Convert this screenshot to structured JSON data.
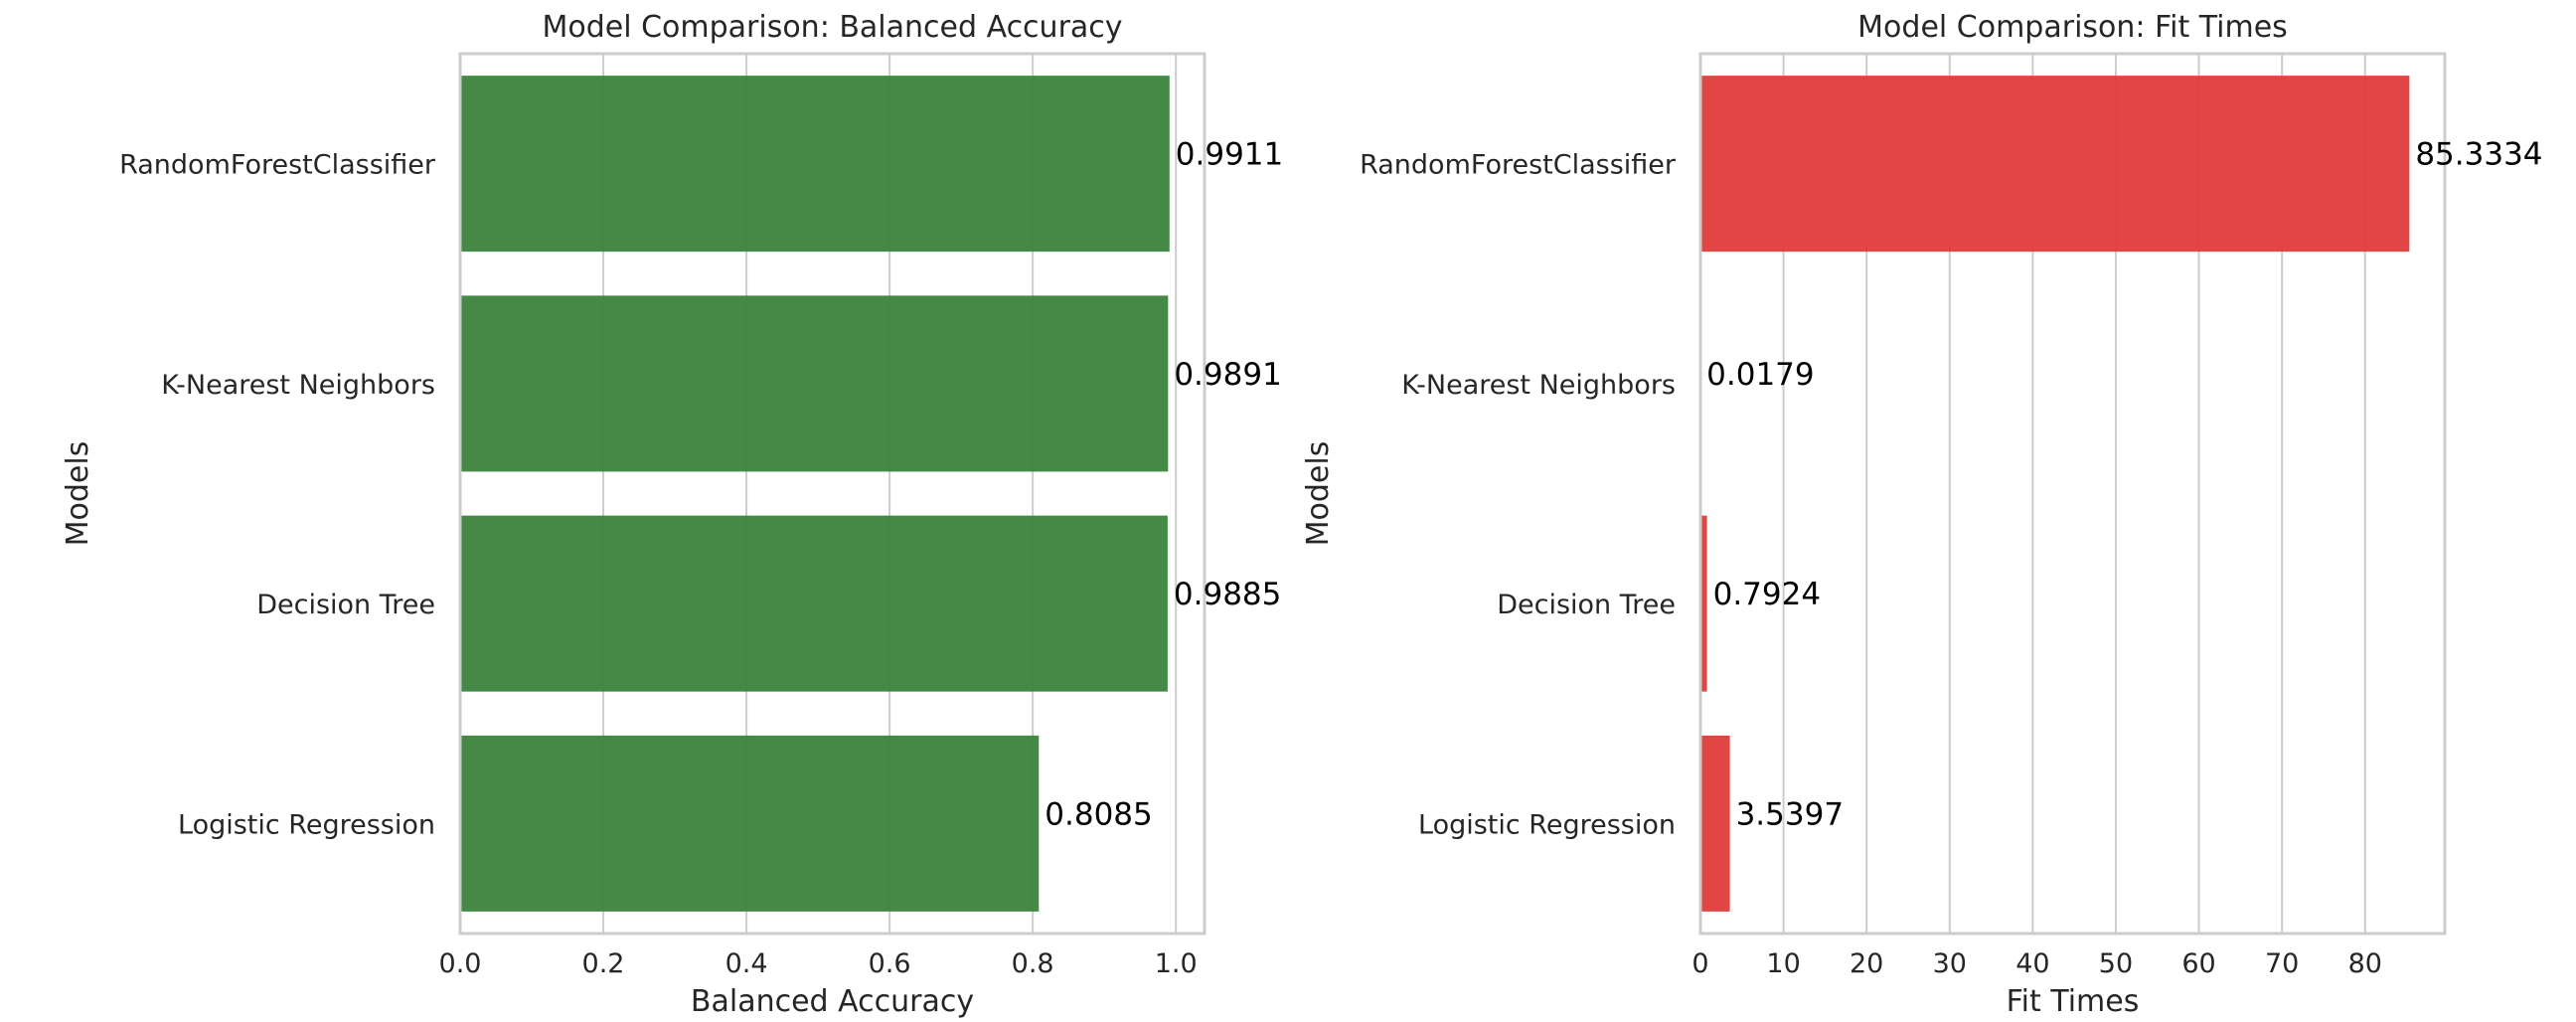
{
  "colors": {
    "accuracy_bar": "#3a833c",
    "fit_time_bar": "#e03c3a",
    "grid": "#cccccc",
    "text": "#262626"
  },
  "chart_data": [
    {
      "type": "bar",
      "orientation": "horizontal",
      "title": "Model Comparison: Balanced Accuracy",
      "xlabel": "Balanced Accuracy",
      "ylabel": "Models",
      "categories": [
        "RandomForestClassifier",
        "K-Nearest Neighbors",
        "Decision Tree",
        "Logistic Regression"
      ],
      "values": [
        0.9911,
        0.9891,
        0.9885,
        0.8085
      ],
      "data_labels": [
        "0.9911",
        "0.9891",
        "0.9885",
        "0.8085"
      ],
      "xlim": [
        0,
        1.04
      ],
      "xticks": [
        0.0,
        0.2,
        0.4,
        0.6,
        0.8,
        1.0
      ],
      "xtick_labels": [
        "0.0",
        "0.2",
        "0.4",
        "0.6",
        "0.8",
        "1.0"
      ],
      "grid": true,
      "color": "#3a833c"
    },
    {
      "type": "bar",
      "orientation": "horizontal",
      "title": "Model Comparison: Fit Times",
      "xlabel": "Fit Times",
      "ylabel": "Models",
      "categories": [
        "RandomForestClassifier",
        "K-Nearest Neighbors",
        "Decision Tree",
        "Logistic Regression"
      ],
      "values": [
        85.3334,
        0.0179,
        0.7924,
        3.5397
      ],
      "data_labels": [
        "85.3334",
        "0.0179",
        "0.7924",
        "3.5397"
      ],
      "xlim": [
        0,
        89.6
      ],
      "xticks": [
        0,
        10,
        20,
        30,
        40,
        50,
        60,
        70,
        80
      ],
      "xtick_labels": [
        "0",
        "10",
        "20",
        "30",
        "40",
        "50",
        "60",
        "70",
        "80"
      ],
      "grid": true,
      "color": "#e03c3a"
    }
  ]
}
